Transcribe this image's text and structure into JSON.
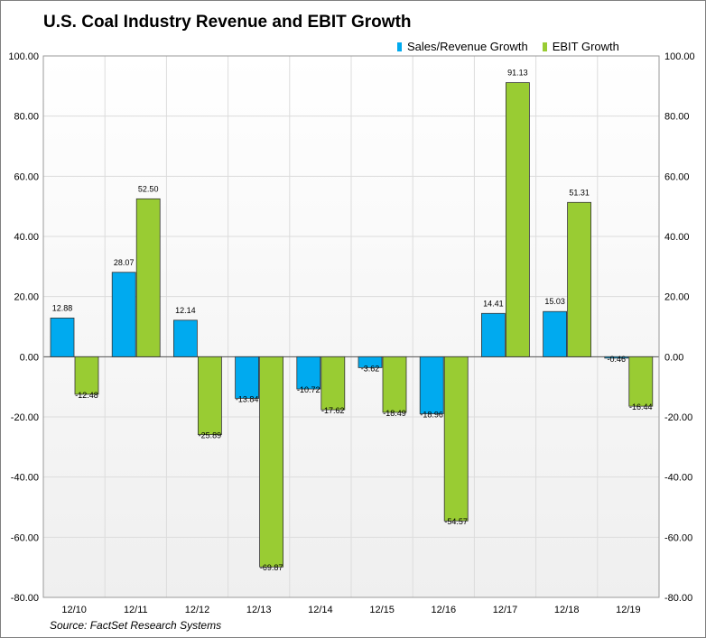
{
  "title": "U.S. Coal Industry Revenue and EBIT Growth",
  "source": "Source: FactSet Research Systems",
  "legend": [
    {
      "name": "Sales/Revenue Growth",
      "color": "#00aaef"
    },
    {
      "name": "EBIT Growth",
      "color": "#99cc33"
    }
  ],
  "chart_data": {
    "type": "bar",
    "title": "U.S. Coal Industry Revenue and EBIT Growth",
    "categories": [
      "12/10",
      "12/11",
      "12/12",
      "12/13",
      "12/14",
      "12/15",
      "12/16",
      "12/17",
      "12/18",
      "12/19"
    ],
    "series": [
      {
        "name": "Sales/Revenue Growth",
        "color": "#00aaef",
        "values": [
          12.88,
          28.07,
          12.14,
          -13.84,
          -10.72,
          -3.62,
          -18.96,
          14.41,
          15.03,
          -0.46
        ],
        "labels": [
          "12.88",
          "28.07",
          "12.14",
          "-13.84",
          "-10.72",
          "-3.62",
          "-18.96",
          "14.41",
          "15.03",
          "-0.46"
        ]
      },
      {
        "name": "EBIT Growth",
        "color": "#99cc33",
        "values": [
          -12.48,
          52.5,
          -25.89,
          -69.87,
          -17.62,
          -18.49,
          -54.57,
          91.13,
          51.31,
          -16.44
        ],
        "labels": [
          "-12.48",
          "52.50",
          "-25.89",
          "-69.87",
          "-17.62",
          "-18.49",
          "-54.57",
          "91.13",
          "51.31",
          "-16.44"
        ]
      }
    ],
    "ylim": [
      -80,
      100
    ],
    "yticks": [
      "100.00",
      "80.00",
      "60.00",
      "40.00",
      "20.00",
      "0.00",
      "-20.00",
      "-40.00",
      "-60.00",
      "-80.00"
    ],
    "ytick_values": [
      100,
      80,
      60,
      40,
      20,
      0,
      -20,
      -40,
      -60,
      -80
    ],
    "grid": true,
    "legend_position": "top-right"
  }
}
